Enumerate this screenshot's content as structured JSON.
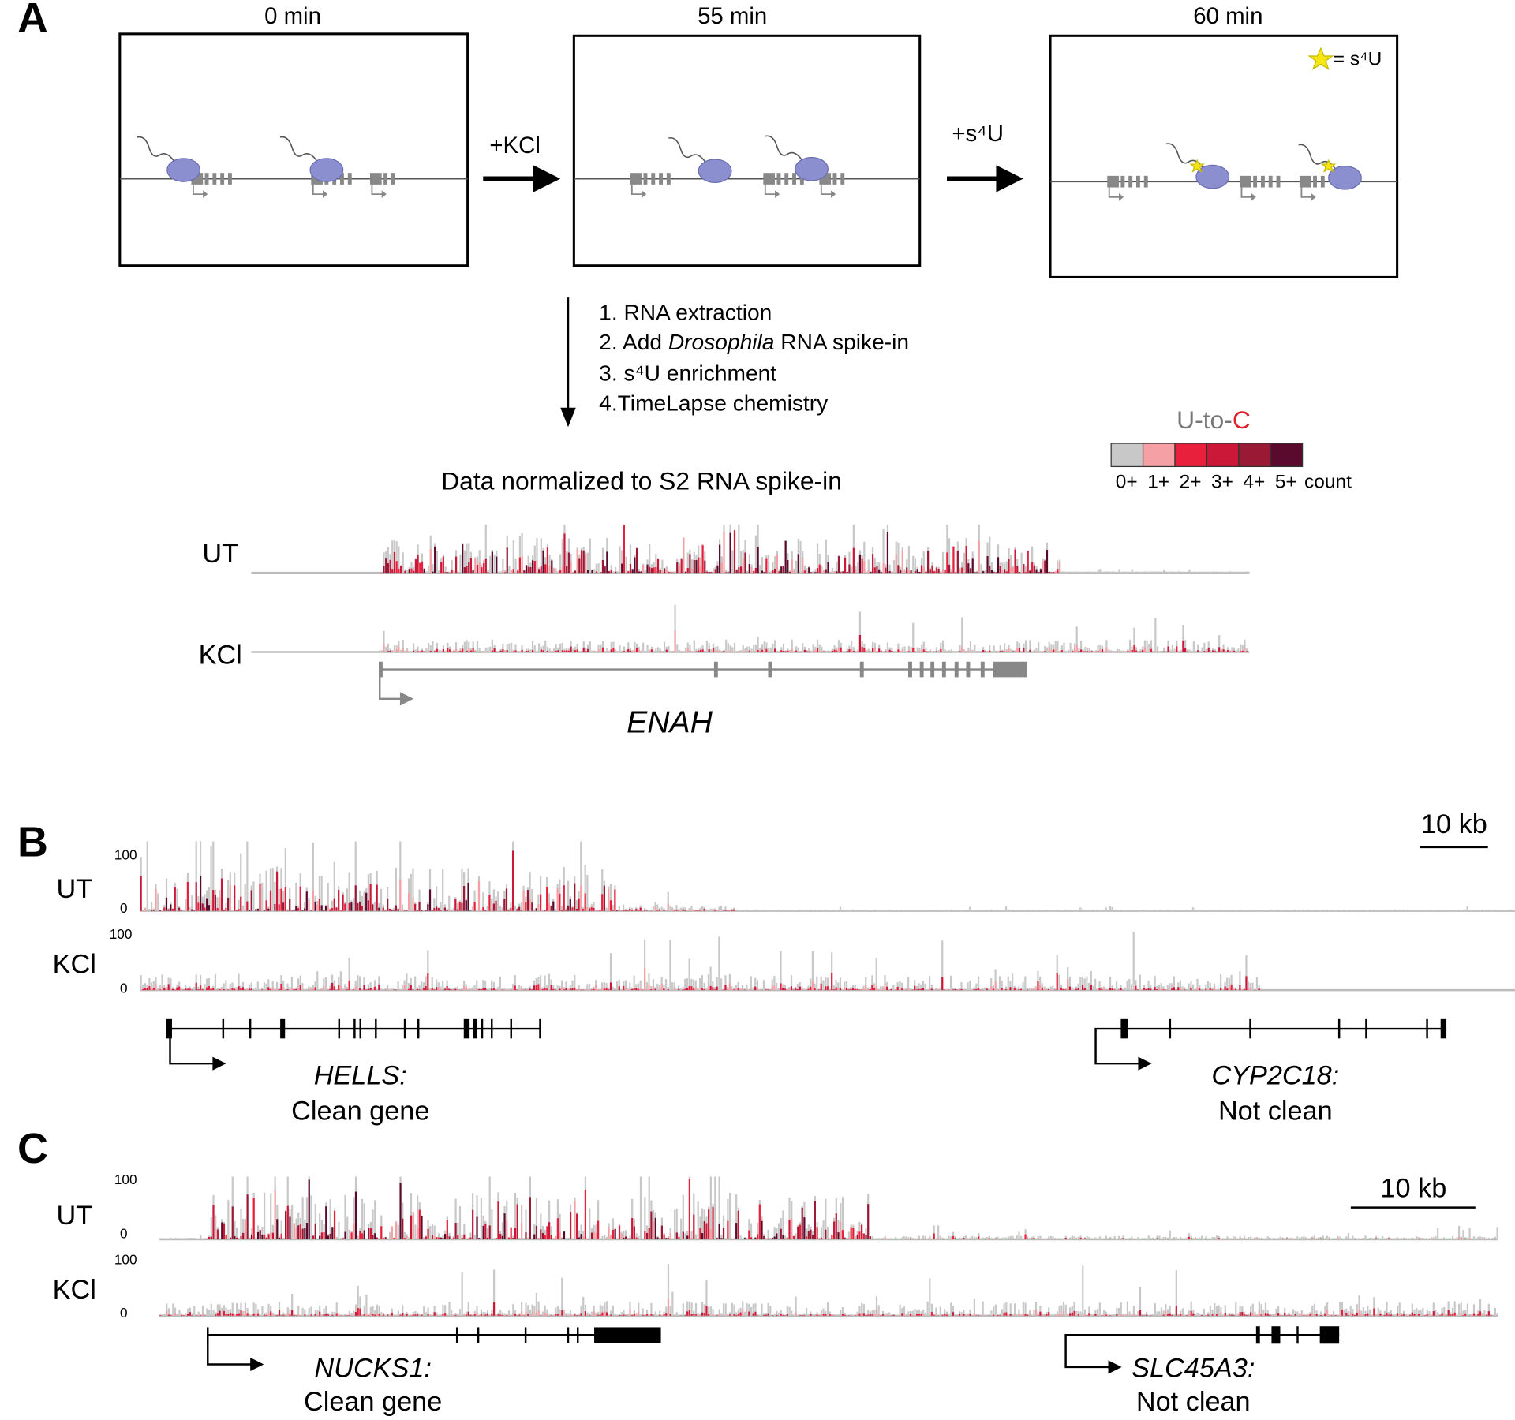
{
  "panel_a": {
    "label": "A",
    "timepoints": [
      "0 min",
      "55 min",
      "60 min"
    ],
    "key": "= s⁴U",
    "treatments": [
      "+KCl",
      "+s⁴U"
    ],
    "steps": [
      "1. RNA extraction",
      [
        "2. Add ",
        "Drosophila",
        " RNA spike-in"
      ],
      "3. s⁴U enrichment",
      "4.TimeLapse chemistry"
    ],
    "legend": {
      "title": [
        "U-to-",
        "C"
      ],
      "labels": [
        "0+",
        "1+",
        "2+",
        "3+",
        "4+",
        "5+"
      ],
      "unit": "count",
      "colors": [
        "#c8c8c8",
        "#f4a0a4",
        "#e8203c",
        "#cc1838",
        "#9a1a36",
        "#5a0a2c"
      ]
    },
    "normalization": "Data normalized to S2 RNA spike-in",
    "tracks": [
      "UT",
      "KCl"
    ],
    "gene": "ENAH"
  },
  "panel_b": {
    "label": "B",
    "scale": "10 kb",
    "tracks": [
      {
        "name": "UT",
        "ymax": "100",
        "ymin": "0"
      },
      {
        "name": "KCl",
        "ymax": "100",
        "ymin": "0"
      }
    ],
    "genes": [
      {
        "name": "HELLS:",
        "note": "Clean gene"
      },
      {
        "name": "CYP2C18:",
        "note": "Not clean"
      }
    ]
  },
  "panel_c": {
    "label": "C",
    "scale": "10 kb",
    "tracks": [
      {
        "name": "UT",
        "ymax": "100",
        "ymin": "0"
      },
      {
        "name": "KCl",
        "ymax": "100",
        "ymin": "0"
      }
    ],
    "genes": [
      {
        "name": "NUCKS1:",
        "note": "Clean gene"
      },
      {
        "name": "SLC45A3:",
        "note": "Not clean"
      }
    ]
  }
}
